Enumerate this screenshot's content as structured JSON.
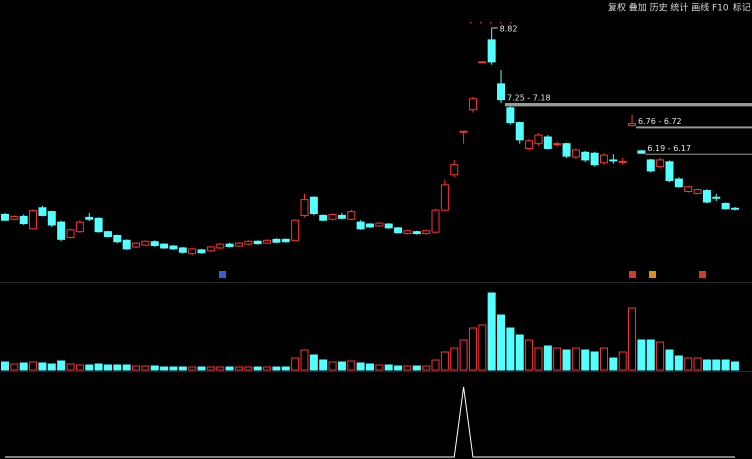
{
  "toolbar": [
    "复权",
    "叠加",
    "历史",
    "统计",
    "画线",
    "F10",
    "标记"
  ],
  "chart_data": [
    {
      "type": "candlestick",
      "open": [
        4.92,
        4.82,
        4.88,
        4.62,
        5.06,
        4.98,
        4.76,
        4.44,
        4.56,
        4.86,
        4.84,
        4.56,
        4.48,
        4.38,
        4.24,
        4.28,
        4.35,
        4.3,
        4.26,
        4.22,
        4.1,
        4.18,
        4.16,
        4.22,
        4.3,
        4.26,
        4.3,
        4.36,
        4.32,
        4.4,
        4.4,
        4.38,
        4.9,
        5.28,
        4.9,
        4.82,
        4.9,
        4.82,
        4.76,
        4.72,
        4.68,
        4.72,
        4.64,
        4.52,
        4.56,
        4.52,
        4.55,
        5.01,
        5.75,
        6.66,
        7.11,
        8.11,
        8.57,
        7.65,
        7.15,
        6.84,
        6.3,
        6.4,
        6.54,
        6.38,
        6.4,
        6.12,
        6.22,
        6.2,
        6.0,
        6.06,
        6.02,
        6.78,
        6.25,
        6.06,
        5.92,
        6.02,
        5.66,
        5.4,
        5.36,
        5.42,
        5.28,
        5.15,
        5.05
      ],
      "high": [
        4.95,
        4.9,
        4.92,
        5.03,
        5.1,
        5.0,
        4.79,
        4.62,
        4.8,
        4.95,
        4.86,
        4.58,
        4.5,
        4.4,
        4.34,
        4.38,
        4.38,
        4.32,
        4.28,
        4.24,
        4.22,
        4.2,
        4.26,
        4.32,
        4.33,
        4.34,
        4.38,
        4.38,
        4.4,
        4.42,
        4.42,
        4.82,
        5.35,
        5.3,
        4.92,
        4.94,
        4.95,
        5.02,
        4.8,
        4.74,
        4.76,
        4.74,
        4.66,
        4.6,
        4.58,
        4.6,
        5.04,
        5.65,
        6.06,
        6.66,
        7.38,
        8.13,
        8.82,
        7.94,
        7.18,
        6.86,
        6.5,
        6.62,
        6.58,
        6.44,
        6.42,
        6.3,
        6.25,
        6.23,
        6.2,
        6.18,
        6.1,
        7.01,
        6.27,
        6.08,
        6.1,
        6.05,
        5.7,
        5.52,
        5.46,
        5.45,
        5.35,
        5.17,
        5.08
      ],
      "low": [
        4.78,
        4.8,
        4.7,
        4.6,
        4.88,
        4.66,
        4.36,
        4.42,
        4.54,
        4.78,
        4.54,
        4.44,
        4.32,
        4.18,
        4.22,
        4.26,
        4.25,
        4.2,
        4.18,
        4.1,
        4.06,
        4.1,
        4.14,
        4.2,
        4.23,
        4.24,
        4.28,
        4.29,
        4.3,
        4.32,
        4.33,
        4.36,
        4.86,
        4.9,
        4.78,
        4.8,
        4.82,
        4.8,
        4.6,
        4.64,
        4.66,
        4.62,
        4.52,
        4.5,
        4.5,
        4.5,
        4.53,
        4.99,
        5.7,
        6.4,
        7.05,
        8.09,
        8.05,
        7.25,
        6.8,
        6.4,
        6.25,
        6.36,
        6.28,
        6.34,
        6.1,
        6.08,
        6.02,
        5.92,
        5.96,
        5.98,
        5.96,
        6.76,
        6.19,
        5.8,
        5.88,
        5.6,
        5.48,
        5.38,
        5.34,
        5.15,
        5.2,
        5.02,
        5.0
      ],
      "close": [
        4.8,
        4.88,
        4.73,
        5.0,
        4.9,
        4.7,
        4.4,
        4.6,
        4.76,
        4.82,
        4.56,
        4.46,
        4.35,
        4.2,
        4.32,
        4.36,
        4.27,
        4.22,
        4.2,
        4.13,
        4.2,
        4.12,
        4.24,
        4.3,
        4.25,
        4.32,
        4.36,
        4.31,
        4.38,
        4.34,
        4.35,
        4.8,
        5.23,
        4.94,
        4.8,
        4.92,
        4.84,
        4.98,
        4.62,
        4.66,
        4.74,
        4.64,
        4.54,
        4.58,
        4.52,
        4.58,
        5.01,
        5.54,
        5.96,
        6.66,
        7.34,
        8.11,
        8.11,
        7.32,
        6.84,
        6.48,
        6.46,
        6.58,
        6.3,
        6.4,
        6.14,
        6.27,
        6.06,
        5.96,
        6.16,
        6.05,
        6.03,
        6.82,
        6.2,
        5.83,
        6.06,
        5.63,
        5.5,
        5.5,
        5.44,
        5.18,
        5.27,
        5.04,
        5.04
      ],
      "ylim": [
        3.55,
        9.09
      ],
      "up_color": "#ff3232",
      "down_color": "#54ffff",
      "max_label": 8.82,
      "gaps": [
        {
          "label": "7.25 - 7.18",
          "top": 7.25,
          "bottom": 7.18
        },
        {
          "label": "6.76 - 6.72",
          "top": 6.76,
          "bottom": 6.72
        },
        {
          "label": "6.19 - 6.17",
          "top": 6.19,
          "bottom": 6.17
        }
      ]
    },
    {
      "type": "bar",
      "values": [
        8,
        6,
        7,
        8,
        7,
        6,
        9,
        6,
        5,
        5,
        6,
        5,
        5,
        5,
        4,
        4,
        4,
        3,
        3,
        3,
        3,
        3,
        3,
        3,
        3,
        3,
        3,
        3,
        3,
        3,
        3,
        12,
        20,
        15,
        10,
        8,
        8,
        9,
        7,
        6,
        5,
        5,
        4,
        4,
        4,
        4,
        10,
        18,
        22,
        30,
        42,
        45,
        77,
        55,
        42,
        35,
        30,
        22,
        24,
        22,
        20,
        22,
        20,
        18,
        22,
        12,
        18,
        62,
        30,
        30,
        28,
        20,
        14,
        12,
        12,
        10,
        10,
        10,
        8
      ],
      "ylim": [
        0,
        80
      ]
    },
    {
      "type": "line",
      "values": [
        0,
        0,
        0,
        0,
        0,
        0,
        0,
        0,
        0,
        0,
        0,
        0,
        0,
        0,
        0,
        0,
        0,
        0,
        0,
        0,
        0,
        0,
        0,
        0,
        0,
        0,
        0,
        0,
        0,
        0,
        0,
        0,
        0,
        0,
        0,
        0,
        0,
        0,
        0,
        0,
        0,
        0,
        0,
        0,
        0,
        0,
        0,
        0,
        0,
        1,
        0,
        0,
        0,
        0,
        0,
        0,
        0,
        0,
        0,
        0,
        0,
        0,
        0,
        0,
        0,
        0,
        0,
        0,
        0,
        0,
        0,
        0,
        0,
        0,
        0,
        0,
        0,
        0,
        0
      ],
      "ylim": [
        0,
        1.1
      ],
      "color": "#ffffff"
    }
  ]
}
